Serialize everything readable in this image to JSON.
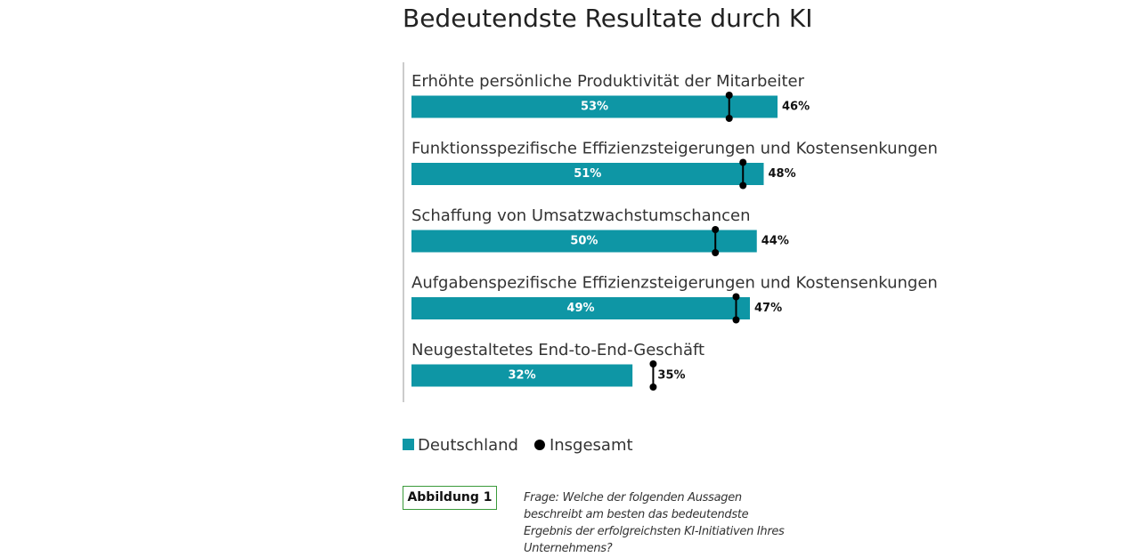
{
  "chart_data": {
    "type": "bar",
    "title": "Bedeutendste Resultate durch KI",
    "categories": [
      "Erhöhte persönliche Produktivität der Mitarbeiter",
      "Funktionsspezifische Effizienzsteigerungen und Kostensenkungen",
      "Schaffung von Umsatzwachstumschancen",
      "Aufgabenspezifische Effizienzsteigerungen und Kostensenkungen",
      "Neugestaltetes End-to-End-Geschäft"
    ],
    "series": [
      {
        "name": "Deutschland",
        "color": "#0e96a5",
        "values": [
          53,
          51,
          50,
          49,
          32
        ],
        "value_labels": [
          "53%",
          "51%",
          "50%",
          "49%",
          "32%"
        ]
      },
      {
        "name": "Insgesamt",
        "color": "#000000",
        "values": [
          46,
          48,
          44,
          47,
          35
        ],
        "value_labels": [
          "46%",
          "48%",
          "44%",
          "47%",
          "35%"
        ]
      }
    ],
    "figure_label": "Abbildung 1",
    "note": "Frage: Welche der folgenden Aussagen beschreibt am besten das bedeutendste Ergebnis der erfolgreichsten KI-Initiativen Ihres Unternehmens?"
  }
}
